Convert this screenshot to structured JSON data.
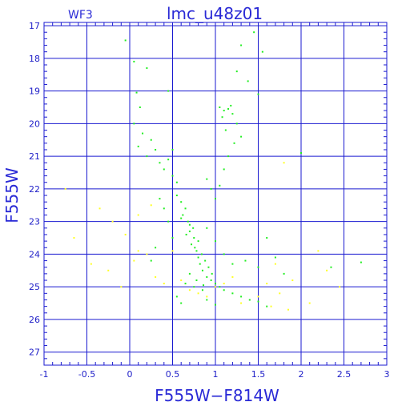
{
  "chart_data": {
    "type": "scatter",
    "title": "lmc_u48z01",
    "panel_label": "WF3",
    "xlabel": "F555W−F814W",
    "ylabel": "F555W",
    "xlim": [
      -1,
      3
    ],
    "ylim": [
      27.4,
      16.9
    ],
    "y_inverted": true,
    "grid": true,
    "x_ticks": [
      -1,
      -0.5,
      0,
      0.5,
      1,
      1.5,
      2,
      2.5,
      3
    ],
    "x_tick_labels": [
      "-1",
      "-0.5",
      "0",
      "0.5",
      "1",
      "1.5",
      "2",
      "2.5",
      "3"
    ],
    "y_ticks": [
      17,
      18,
      19,
      20,
      21,
      22,
      23,
      24,
      25,
      26,
      27
    ],
    "y_tick_labels": [
      "17",
      "18",
      "19",
      "20",
      "21",
      "22",
      "23",
      "24",
      "25",
      "26",
      "27"
    ],
    "colors": {
      "frame": "#1a1ad0",
      "grid": "#1a1ad0",
      "text": "#2020c8",
      "green": "#22ee22",
      "yellow": "#ffff22"
    },
    "series": [
      {
        "color": "green",
        "points": [
          [
            -0.05,
            17.45
          ],
          [
            0.05,
            18.1
          ],
          [
            0.2,
            18.3
          ],
          [
            0.08,
            19.05
          ],
          [
            0.12,
            19.5
          ],
          [
            0.45,
            19.0
          ],
          [
            0.05,
            20.0
          ],
          [
            0.15,
            20.3
          ],
          [
            0.25,
            20.5
          ],
          [
            0.1,
            20.7
          ],
          [
            0.3,
            20.8
          ],
          [
            0.2,
            21.0
          ],
          [
            0.35,
            21.2
          ],
          [
            0.45,
            21.1
          ],
          [
            0.5,
            20.8
          ],
          [
            0.4,
            21.4
          ],
          [
            0.5,
            21.6
          ],
          [
            0.55,
            21.8
          ],
          [
            1.25,
            18.4
          ],
          [
            1.38,
            18.7
          ],
          [
            1.5,
            19.1
          ],
          [
            1.45,
            17.2
          ],
          [
            1.3,
            17.6
          ],
          [
            1.55,
            17.8
          ],
          [
            1.05,
            19.5
          ],
          [
            1.1,
            19.6
          ],
          [
            1.15,
            19.55
          ],
          [
            1.2,
            19.7
          ],
          [
            1.08,
            19.8
          ],
          [
            1.18,
            19.45
          ],
          [
            1.12,
            20.2
          ],
          [
            1.22,
            20.6
          ],
          [
            1.15,
            21.0
          ],
          [
            1.1,
            21.4
          ],
          [
            1.05,
            21.9
          ],
          [
            1.0,
            22.3
          ],
          [
            0.95,
            22.0
          ],
          [
            0.9,
            21.7
          ],
          [
            1.25,
            20.0
          ],
          [
            1.3,
            20.4
          ],
          [
            0.55,
            22.2
          ],
          [
            0.6,
            22.4
          ],
          [
            0.65,
            22.6
          ],
          [
            0.6,
            22.9
          ],
          [
            0.7,
            23.1
          ],
          [
            0.7,
            23.3
          ],
          [
            0.75,
            23.5
          ],
          [
            0.72,
            23.7
          ],
          [
            0.78,
            23.9
          ],
          [
            0.8,
            24.1
          ],
          [
            0.82,
            24.3
          ],
          [
            0.85,
            24.5
          ],
          [
            0.7,
            24.6
          ],
          [
            0.9,
            24.7
          ],
          [
            0.95,
            24.8
          ],
          [
            1.0,
            24.9
          ],
          [
            1.05,
            25.0
          ],
          [
            1.1,
            25.1
          ],
          [
            0.65,
            24.9
          ],
          [
            0.75,
            25.0
          ],
          [
            0.85,
            25.1
          ],
          [
            1.2,
            25.2
          ],
          [
            1.3,
            25.3
          ],
          [
            1.4,
            25.4
          ],
          [
            0.55,
            25.3
          ],
          [
            0.6,
            25.5
          ],
          [
            0.9,
            25.4
          ],
          [
            1.0,
            25.55
          ],
          [
            1.5,
            25.45
          ],
          [
            1.6,
            25.6
          ],
          [
            0.45,
            23.0
          ],
          [
            0.5,
            23.5
          ],
          [
            0.4,
            22.6
          ],
          [
            0.35,
            22.3
          ],
          [
            0.9,
            23.2
          ],
          [
            1.0,
            23.6
          ],
          [
            1.1,
            24.0
          ],
          [
            1.2,
            24.3
          ],
          [
            1.35,
            24.2
          ],
          [
            1.5,
            24.4
          ],
          [
            1.7,
            24.1
          ],
          [
            1.8,
            24.6
          ],
          [
            0.25,
            24.2
          ],
          [
            0.3,
            23.8
          ],
          [
            2.35,
            24.4
          ],
          [
            2.7,
            24.25
          ],
          [
            2.0,
            20.9
          ],
          [
            1.6,
            23.5
          ],
          [
            0.62,
            22.8
          ],
          [
            0.68,
            23.0
          ],
          [
            0.74,
            23.2
          ],
          [
            0.66,
            23.4
          ],
          [
            0.8,
            23.6
          ],
          [
            0.76,
            23.8
          ],
          [
            0.84,
            24.0
          ],
          [
            0.88,
            24.2
          ],
          [
            0.92,
            24.4
          ],
          [
            0.96,
            24.6
          ],
          [
            0.78,
            24.8
          ],
          [
            0.86,
            24.95
          ]
        ]
      },
      {
        "color": "yellow",
        "points": [
          [
            -0.75,
            22.0
          ],
          [
            -0.35,
            22.6
          ],
          [
            -0.2,
            23.0
          ],
          [
            -0.65,
            23.5
          ],
          [
            -0.45,
            24.3
          ],
          [
            -0.25,
            24.5
          ],
          [
            0.05,
            24.2
          ],
          [
            0.1,
            23.9
          ],
          [
            0.2,
            24.0
          ],
          [
            0.3,
            24.7
          ],
          [
            0.4,
            24.9
          ],
          [
            -0.1,
            25.0
          ],
          [
            0.25,
            22.5
          ],
          [
            0.1,
            22.8
          ],
          [
            -0.05,
            23.4
          ],
          [
            0.6,
            24.8
          ],
          [
            0.7,
            25.1
          ],
          [
            0.8,
            25.2
          ],
          [
            0.9,
            25.3
          ],
          [
            1.0,
            25.0
          ],
          [
            1.1,
            24.9
          ],
          [
            1.2,
            24.7
          ],
          [
            1.3,
            25.5
          ],
          [
            1.5,
            25.3
          ],
          [
            1.6,
            24.9
          ],
          [
            1.75,
            25.2
          ],
          [
            1.9,
            24.8
          ],
          [
            2.2,
            23.9
          ],
          [
            2.3,
            24.5
          ],
          [
            2.1,
            25.5
          ],
          [
            1.85,
            25.7
          ],
          [
            1.65,
            25.6
          ],
          [
            2.45,
            25.0
          ],
          [
            1.8,
            21.2
          ],
          [
            1.7,
            24.3
          ],
          [
            0.5,
            23.9
          ]
        ]
      }
    ]
  }
}
